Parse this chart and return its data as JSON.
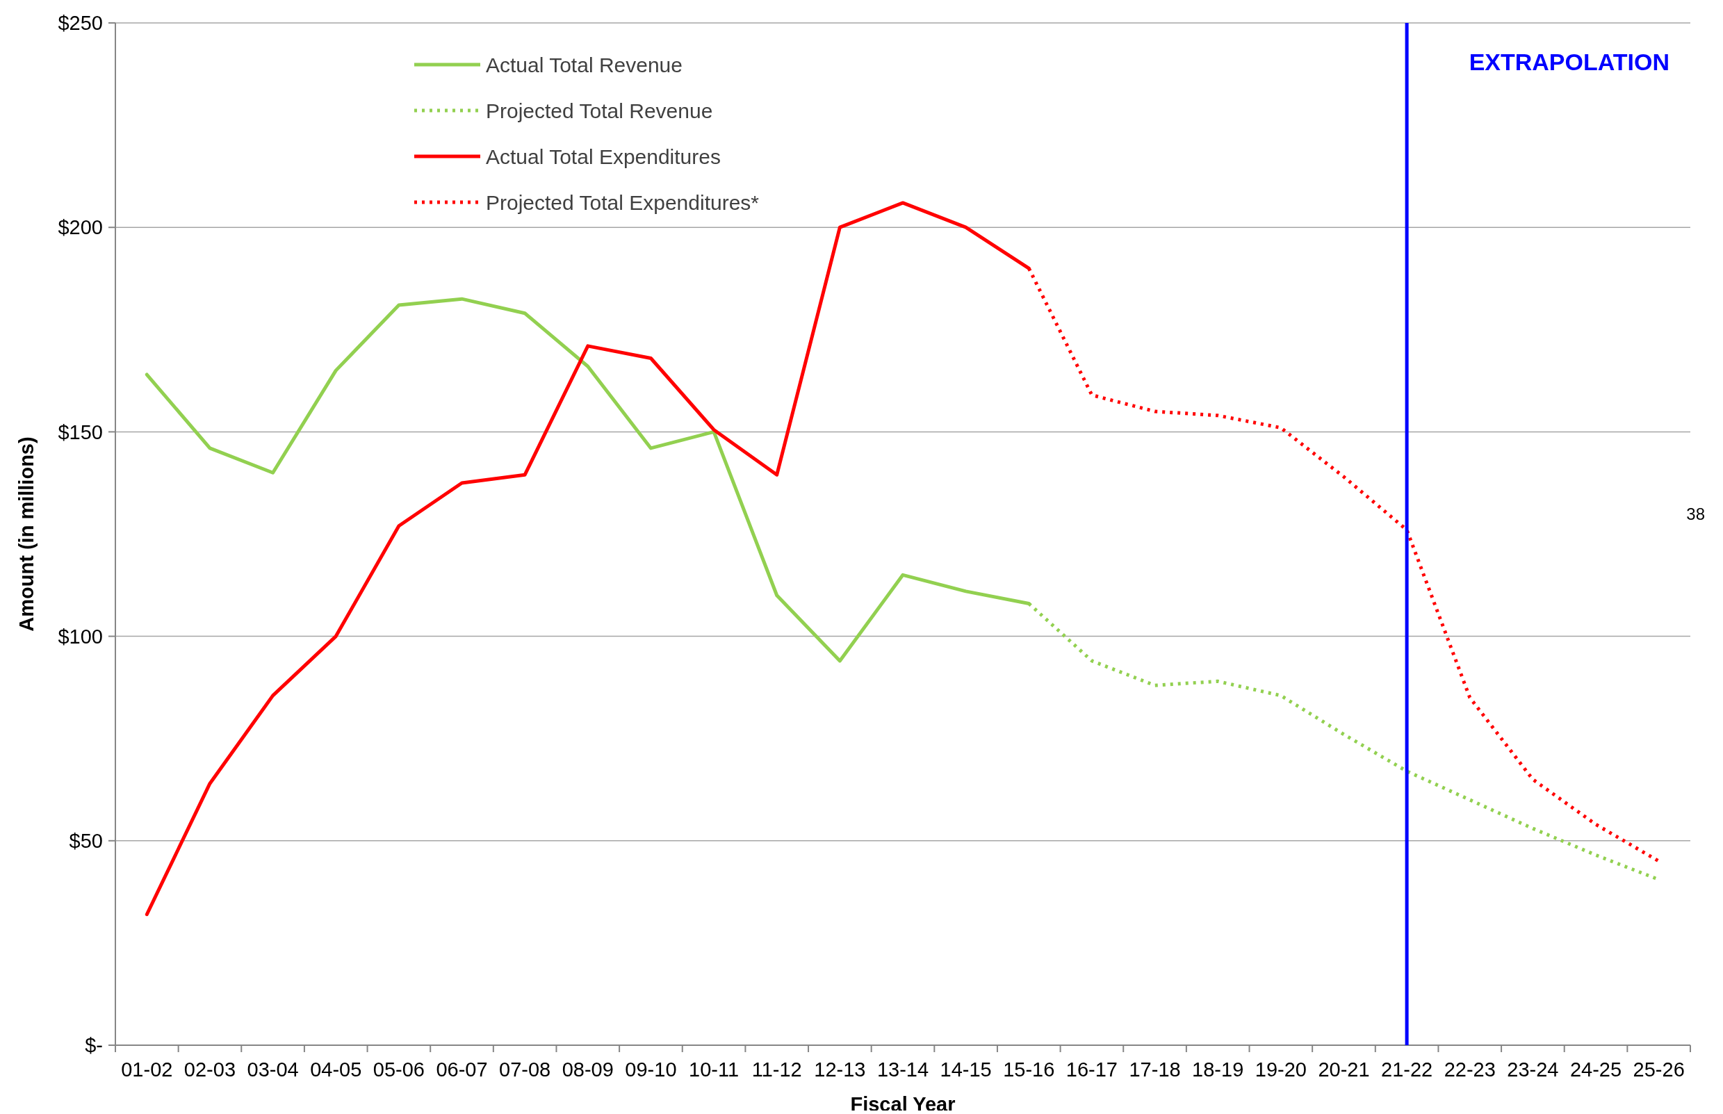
{
  "chart_data": {
    "type": "line",
    "xlabel": "Fiscal Year",
    "ylabel": "Amount (in millions)",
    "categories": [
      "01-02",
      "02-03",
      "03-04",
      "04-05",
      "05-06",
      "06-07",
      "07-08",
      "08-09",
      "09-10",
      "10-11",
      "11-12",
      "12-13",
      "13-14",
      "14-15",
      "15-16",
      "16-17",
      "17-18",
      "18-19",
      "19-20",
      "20-21",
      "21-22",
      "22-23",
      "23-24",
      "24-25",
      "25-26"
    ],
    "ylim": [
      0,
      250
    ],
    "yticks": [
      {
        "value": 0,
        "label": "$-"
      },
      {
        "value": 50,
        "label": "$50"
      },
      {
        "value": 100,
        "label": "$100"
      },
      {
        "value": 150,
        "label": "$150"
      },
      {
        "value": 200,
        "label": "$200"
      },
      {
        "value": 250,
        "label": "$250"
      }
    ],
    "grid": "y",
    "legend": "top left",
    "series": [
      {
        "name": "Actual Total Revenue",
        "color": "#92d050",
        "line_style": "solid",
        "values": [
          164,
          146,
          140,
          165,
          181,
          182.5,
          179,
          166,
          146,
          150,
          110,
          94,
          115,
          111,
          108,
          null,
          null,
          null,
          null,
          null,
          null,
          null,
          null,
          null,
          null
        ]
      },
      {
        "name": "Projected Total Revenue",
        "color": "#92d050",
        "line_style": "dotted",
        "values": [
          null,
          null,
          null,
          null,
          null,
          null,
          null,
          null,
          null,
          null,
          null,
          null,
          null,
          null,
          108,
          94,
          88,
          89,
          85.5,
          76,
          67,
          60,
          53,
          46.5,
          40.5
        ]
      },
      {
        "name": "Actual Total Expenditures",
        "color": "#ff0000",
        "line_style": "solid",
        "values": [
          32,
          64,
          85.5,
          100,
          127,
          137.5,
          139.5,
          171,
          168,
          150.5,
          139.5,
          200,
          206,
          200,
          190,
          null,
          null,
          null,
          null,
          null,
          null,
          null,
          null,
          null,
          null
        ]
      },
      {
        "name": "Projected Total Expenditures*",
        "color": "#ff0000",
        "line_style": "dotted",
        "values": [
          null,
          null,
          null,
          null,
          null,
          null,
          null,
          null,
          null,
          null,
          null,
          null,
          null,
          null,
          190,
          159,
          155,
          154,
          151,
          139,
          126,
          85,
          65,
          54,
          45
        ]
      }
    ],
    "ref_lines": [
      {
        "axis": "x",
        "value": "21-22",
        "label": "EXTRAPOLATION",
        "color": "#0000ff"
      }
    ],
    "annotations": [
      "38"
    ]
  }
}
